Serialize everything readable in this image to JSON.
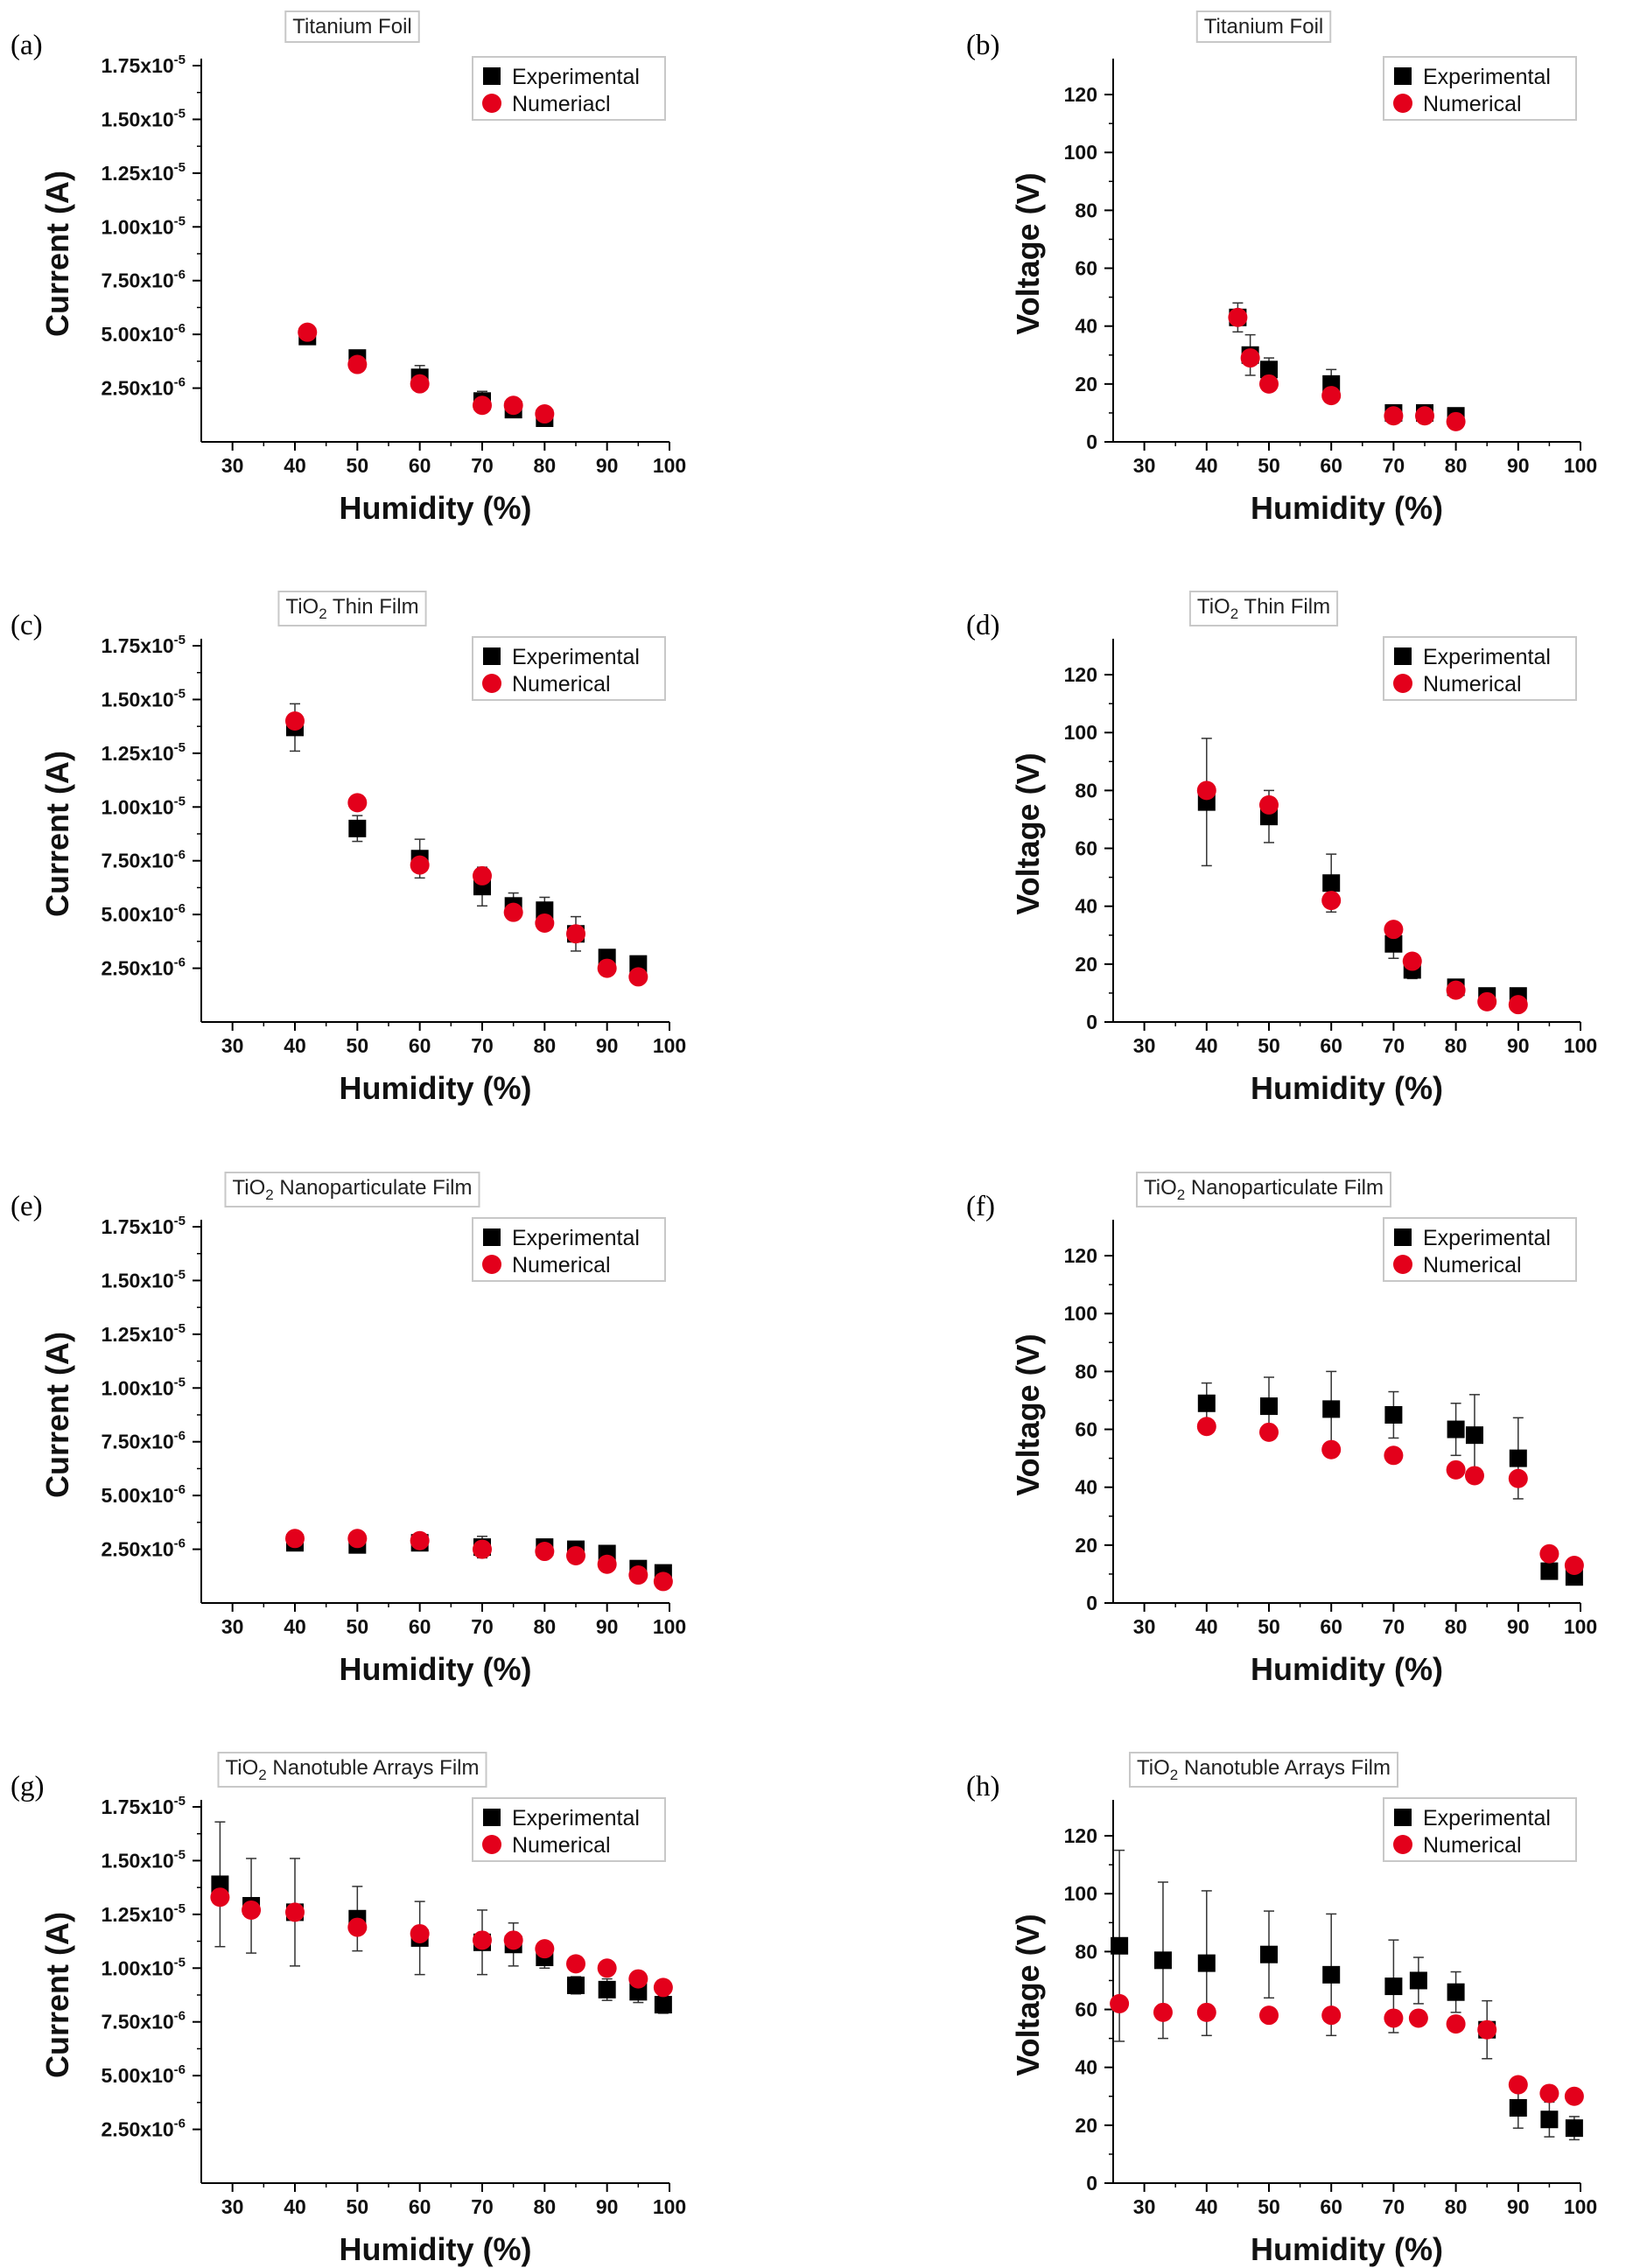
{
  "figure": {
    "colors": {
      "experimental": "#000000",
      "numerical": "#e3001b",
      "axis": "#000000",
      "box": "#c8c8c8"
    }
  },
  "chart_data": [
    {
      "panel": "(a)",
      "type": "scatter",
      "title": "Titanium Foil",
      "xlabel": "Humidity (%)",
      "ylabel": "Current  (A)",
      "xlim": [
        25,
        100
      ],
      "ylim": [
        0,
        1.75e-05
      ],
      "xticks": [
        30,
        40,
        50,
        60,
        70,
        80,
        90,
        100
      ],
      "yticks": [
        2.5e-06,
        5e-06,
        7.5e-06,
        1e-05,
        1.25e-05,
        1.5e-05,
        1.75e-05
      ],
      "ytick_labels": [
        [
          "2.50x10",
          "-6"
        ],
        [
          "5.00x10",
          "-6"
        ],
        [
          "7.50x10",
          "-6"
        ],
        [
          "1.00x10",
          "-5"
        ],
        [
          "1.25x10",
          "-5"
        ],
        [
          "1.50x10",
          "-5"
        ],
        [
          "1.75x10",
          "-5"
        ]
      ],
      "series": [
        {
          "name": "Experimental",
          "marker": "square",
          "points": [
            [
              42,
              4.9e-06
            ],
            [
              50,
              3.9e-06
            ],
            [
              60,
              3e-06
            ],
            [
              70,
              1.9e-06
            ],
            [
              75,
              1.5e-06
            ],
            [
              80,
              1.1e-06
            ]
          ],
          "errors": [
            3.5e-07,
            3.5e-07,
            5.5e-07,
            4.5e-07,
            3e-07,
            2.5e-07
          ]
        },
        {
          "name": "Numeriacl",
          "marker": "circle",
          "points": [
            [
              42,
              5.1e-06
            ],
            [
              50,
              3.6e-06
            ],
            [
              60,
              2.7e-06
            ],
            [
              70,
              1.7e-06
            ],
            [
              75,
              1.7e-06
            ],
            [
              80,
              1.3e-06
            ]
          ]
        }
      ]
    },
    {
      "panel": "(b)",
      "type": "scatter",
      "title": "Titanium Foil",
      "xlabel": "Humidity (%)",
      "ylabel": "Voltage (V)",
      "xlim": [
        25,
        100
      ],
      "ylim": [
        0,
        130
      ],
      "xticks": [
        30,
        40,
        50,
        60,
        70,
        80,
        90,
        100
      ],
      "yticks": [
        0,
        20,
        40,
        60,
        80,
        100,
        120
      ],
      "series": [
        {
          "name": "Experimental",
          "marker": "square",
          "points": [
            [
              45,
              43
            ],
            [
              47,
              30
            ],
            [
              50,
              25
            ],
            [
              60,
              20
            ],
            [
              70,
              10
            ],
            [
              75,
              10
            ],
            [
              80,
              9
            ]
          ],
          "errors": [
            5,
            7,
            4,
            5,
            2,
            2,
            1.5
          ]
        },
        {
          "name": "Numerical",
          "marker": "circle",
          "points": [
            [
              45,
              43
            ],
            [
              47,
              29
            ],
            [
              50,
              20
            ],
            [
              60,
              16
            ],
            [
              70,
              9
            ],
            [
              75,
              9
            ],
            [
              80,
              7
            ]
          ]
        }
      ]
    },
    {
      "panel": "(c)",
      "type": "scatter",
      "title": "TiO2 Thin Film",
      "xlabel": "Humidity (%)",
      "ylabel": "Current  (A)",
      "xlim": [
        25,
        100
      ],
      "ylim": [
        0,
        1.75e-05
      ],
      "xticks": [
        30,
        40,
        50,
        60,
        70,
        80,
        90,
        100
      ],
      "yticks": [
        2.5e-06,
        5e-06,
        7.5e-06,
        1e-05,
        1.25e-05,
        1.5e-05,
        1.75e-05
      ],
      "ytick_labels": [
        [
          "2.50x10",
          "-6"
        ],
        [
          "5.00x10",
          "-6"
        ],
        [
          "7.50x10",
          "-6"
        ],
        [
          "1.00x10",
          "-5"
        ],
        [
          "1.25x10",
          "-5"
        ],
        [
          "1.50x10",
          "-5"
        ],
        [
          "1.75x10",
          "-5"
        ]
      ],
      "series": [
        {
          "name": "Experimental",
          "marker": "square",
          "points": [
            [
              40,
              1.37e-05
            ],
            [
              50,
              9e-06
            ],
            [
              60,
              7.6e-06
            ],
            [
              70,
              6.3e-06
            ],
            [
              75,
              5.4e-06
            ],
            [
              80,
              5.2e-06
            ],
            [
              85,
              4.1e-06
            ],
            [
              90,
              3e-06
            ],
            [
              95,
              2.7e-06
            ]
          ],
          "errors": [
            1.1e-06,
            6e-07,
            9e-07,
            9e-07,
            6e-07,
            6e-07,
            8e-07,
            3e-07,
            3e-07
          ]
        },
        {
          "name": "Numerical",
          "marker": "circle",
          "points": [
            [
              40,
              1.4e-05
            ],
            [
              50,
              1.02e-05
            ],
            [
              60,
              7.3e-06
            ],
            [
              70,
              6.8e-06
            ],
            [
              75,
              5.1e-06
            ],
            [
              80,
              4.6e-06
            ],
            [
              85,
              4.1e-06
            ],
            [
              90,
              2.5e-06
            ],
            [
              95,
              2.1e-06
            ]
          ]
        }
      ]
    },
    {
      "panel": "(d)",
      "type": "scatter",
      "title": "TiO2 Thin Film",
      "xlabel": "Humidity (%)",
      "ylabel": "Voltage (V)",
      "xlim": [
        25,
        100
      ],
      "ylim": [
        0,
        130
      ],
      "xticks": [
        30,
        40,
        50,
        60,
        70,
        80,
        90,
        100
      ],
      "yticks": [
        0,
        20,
        40,
        60,
        80,
        100,
        120
      ],
      "series": [
        {
          "name": "Experimental",
          "marker": "square",
          "points": [
            [
              40,
              76
            ],
            [
              50,
              71
            ],
            [
              60,
              48
            ],
            [
              70,
              27
            ],
            [
              73,
              18
            ],
            [
              80,
              12
            ],
            [
              85,
              9
            ],
            [
              90,
              9
            ]
          ],
          "errors": [
            22,
            9,
            10,
            5,
            3,
            2,
            1.5,
            1.5
          ]
        },
        {
          "name": "Numerical",
          "marker": "circle",
          "points": [
            [
              40,
              80
            ],
            [
              50,
              75
            ],
            [
              60,
              42
            ],
            [
              70,
              32
            ],
            [
              73,
              21
            ],
            [
              80,
              11
            ],
            [
              85,
              7
            ],
            [
              90,
              6
            ]
          ]
        }
      ]
    },
    {
      "panel": "(e)",
      "type": "scatter",
      "title": "TiO2 Nanoparticulate Film",
      "xlabel": "Humidity (%)",
      "ylabel": "Current  (A)",
      "xlim": [
        25,
        100
      ],
      "ylim": [
        0,
        1.75e-05
      ],
      "xticks": [
        30,
        40,
        50,
        60,
        70,
        80,
        90,
        100
      ],
      "yticks": [
        2.5e-06,
        5e-06,
        7.5e-06,
        1e-05,
        1.25e-05,
        1.5e-05,
        1.75e-05
      ],
      "ytick_labels": [
        [
          "2.50x10",
          "-6"
        ],
        [
          "5.00x10",
          "-6"
        ],
        [
          "7.50x10",
          "-6"
        ],
        [
          "1.00x10",
          "-5"
        ],
        [
          "1.25x10",
          "-5"
        ],
        [
          "1.50x10",
          "-5"
        ],
        [
          "1.75x10",
          "-5"
        ]
      ],
      "series": [
        {
          "name": "Experimental",
          "marker": "square",
          "points": [
            [
              40,
              2.8e-06
            ],
            [
              50,
              2.7e-06
            ],
            [
              60,
              2.8e-06
            ],
            [
              70,
              2.6e-06
            ],
            [
              80,
              2.6e-06
            ],
            [
              85,
              2.5e-06
            ],
            [
              90,
              2.3e-06
            ],
            [
              95,
              1.6e-06
            ],
            [
              99,
              1.4e-06
            ]
          ],
          "errors": [
            3e-07,
            3e-07,
            2e-07,
            5e-07,
            2e-07,
            3e-07,
            3e-07,
            2e-07,
            2e-07
          ]
        },
        {
          "name": "Numerical",
          "marker": "circle",
          "points": [
            [
              40,
              3e-06
            ],
            [
              50,
              3e-06
            ],
            [
              60,
              2.9e-06
            ],
            [
              70,
              2.5e-06
            ],
            [
              80,
              2.4e-06
            ],
            [
              85,
              2.2e-06
            ],
            [
              90,
              1.8e-06
            ],
            [
              95,
              1.3e-06
            ],
            [
              99,
              1e-06
            ]
          ]
        }
      ]
    },
    {
      "panel": "(f)",
      "type": "scatter",
      "title": "TiO2 Nanoparticulate Film",
      "xlabel": "Humidity (%)",
      "ylabel": "Voltage (V)",
      "xlim": [
        25,
        100
      ],
      "ylim": [
        0,
        130
      ],
      "xticks": [
        30,
        40,
        50,
        60,
        70,
        80,
        90,
        100
      ],
      "yticks": [
        0,
        20,
        40,
        60,
        80,
        100,
        120
      ],
      "series": [
        {
          "name": "Experimental",
          "marker": "square",
          "points": [
            [
              40,
              69
            ],
            [
              50,
              68
            ],
            [
              60,
              67
            ],
            [
              70,
              65
            ],
            [
              80,
              60
            ],
            [
              83,
              58
            ],
            [
              90,
              50
            ],
            [
              95,
              11
            ],
            [
              99,
              9
            ]
          ],
          "errors": [
            7,
            10,
            13,
            8,
            9,
            14,
            14,
            2,
            2
          ]
        },
        {
          "name": "Numerical",
          "marker": "circle",
          "points": [
            [
              40,
              61
            ],
            [
              50,
              59
            ],
            [
              60,
              53
            ],
            [
              70,
              51
            ],
            [
              80,
              46
            ],
            [
              83,
              44
            ],
            [
              90,
              43
            ],
            [
              95,
              17
            ],
            [
              99,
              13
            ]
          ]
        }
      ]
    },
    {
      "panel": "(g)",
      "type": "scatter",
      "title": "TiO2 Nanotuble Arrays Film",
      "xlabel": "Humidity (%)",
      "ylabel": "Current  (A)",
      "xlim": [
        25,
        100
      ],
      "ylim": [
        0,
        1.75e-05
      ],
      "xticks": [
        30,
        40,
        50,
        60,
        70,
        80,
        90,
        100
      ],
      "yticks": [
        2.5e-06,
        5e-06,
        7.5e-06,
        1e-05,
        1.25e-05,
        1.5e-05,
        1.75e-05
      ],
      "ytick_labels": [
        [
          "2.50x10",
          "-6"
        ],
        [
          "5.00x10",
          "-6"
        ],
        [
          "7.50x10",
          "-6"
        ],
        [
          "1.00x10",
          "-5"
        ],
        [
          "1.25x10",
          "-5"
        ],
        [
          "1.50x10",
          "-5"
        ],
        [
          "1.75x10",
          "-5"
        ]
      ],
      "series": [
        {
          "name": "Experimental",
          "marker": "square",
          "points": [
            [
              28,
              1.39e-05
            ],
            [
              33,
              1.29e-05
            ],
            [
              40,
              1.26e-05
            ],
            [
              50,
              1.23e-05
            ],
            [
              60,
              1.14e-05
            ],
            [
              70,
              1.12e-05
            ],
            [
              75,
              1.11e-05
            ],
            [
              80,
              1.05e-05
            ],
            [
              85,
              9.2e-06
            ],
            [
              90,
              9e-06
            ],
            [
              95,
              8.9e-06
            ],
            [
              99,
              8.3e-06
            ]
          ],
          "errors": [
            2.9e-06,
            2.2e-06,
            2.5e-06,
            1.5e-06,
            1.7e-06,
            1.5e-06,
            1e-06,
            5e-07,
            4e-07,
            5e-07,
            5e-07,
            4e-07
          ]
        },
        {
          "name": "Numerical",
          "marker": "circle",
          "points": [
            [
              28,
              1.33e-05
            ],
            [
              33,
              1.27e-05
            ],
            [
              40,
              1.26e-05
            ],
            [
              50,
              1.19e-05
            ],
            [
              60,
              1.16e-05
            ],
            [
              70,
              1.13e-05
            ],
            [
              75,
              1.13e-05
            ],
            [
              80,
              1.09e-05
            ],
            [
              85,
              1.02e-05
            ],
            [
              90,
              1e-05
            ],
            [
              95,
              9.5e-06
            ],
            [
              99,
              9.1e-06
            ]
          ]
        }
      ]
    },
    {
      "panel": "(h)",
      "type": "scatter",
      "title": "TiO2 Nanotuble Arrays Film",
      "xlabel": "Humidity (%)",
      "ylabel": "Voltage (V)",
      "xlim": [
        25,
        100
      ],
      "ylim": [
        0,
        130
      ],
      "xticks": [
        30,
        40,
        50,
        60,
        70,
        80,
        90,
        100
      ],
      "yticks": [
        0,
        20,
        40,
        60,
        80,
        100,
        120
      ],
      "series": [
        {
          "name": "Experimental",
          "marker": "square",
          "points": [
            [
              26,
              82
            ],
            [
              33,
              77
            ],
            [
              40,
              76
            ],
            [
              50,
              79
            ],
            [
              60,
              72
            ],
            [
              70,
              68
            ],
            [
              74,
              70
            ],
            [
              80,
              66
            ],
            [
              85,
              53
            ],
            [
              90,
              26
            ],
            [
              95,
              22
            ],
            [
              99,
              19
            ]
          ],
          "errors": [
            33,
            27,
            25,
            15,
            21,
            16,
            8,
            7,
            10,
            7,
            6,
            4
          ]
        },
        {
          "name": "Numerical",
          "marker": "circle",
          "points": [
            [
              26,
              62
            ],
            [
              33,
              59
            ],
            [
              40,
              59
            ],
            [
              50,
              58
            ],
            [
              60,
              58
            ],
            [
              70,
              57
            ],
            [
              74,
              57
            ],
            [
              80,
              55
            ],
            [
              85,
              53
            ],
            [
              90,
              34
            ],
            [
              95,
              31
            ],
            [
              99,
              30
            ]
          ]
        }
      ]
    }
  ]
}
